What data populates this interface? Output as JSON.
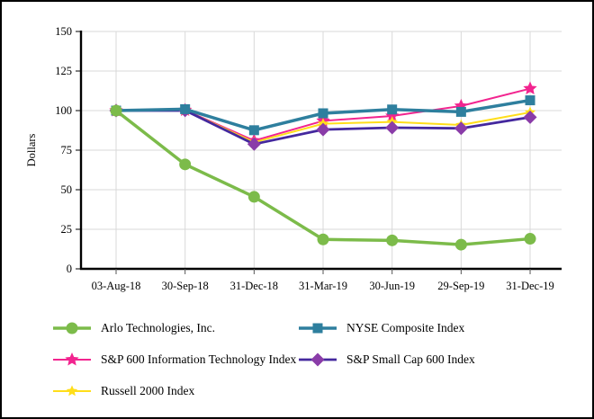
{
  "figure": {
    "background": "#ffffff",
    "border_color": "#000000",
    "grid_color": "#d9d9d9",
    "axis_color": "#000000",
    "text_color": "#000000"
  },
  "chart_data": {
    "type": "line",
    "title": "",
    "xlabel": "",
    "ylabel": "Dollars",
    "ylim": [
      0,
      150
    ],
    "yticks": [
      0,
      25,
      50,
      75,
      100,
      125,
      150
    ],
    "grid": true,
    "legend_position": "bottom",
    "categories": [
      "03-Aug-18",
      "30-Sep-18",
      "31-Dec-18",
      "31-Mar-19",
      "30-Jun-19",
      "29-Sep-19",
      "31-Dec-19"
    ],
    "series": [
      {
        "name": "Arlo Technologies, Inc.",
        "marker": "circle",
        "color": "#7cbb4a",
        "values": [
          100,
          66,
          45.5,
          18.6,
          18,
          15.3,
          19
        ]
      },
      {
        "name": "NYSE Composite Index",
        "marker": "square",
        "color": "#2e7f9e",
        "values": [
          100,
          100.9,
          87.6,
          98.3,
          100.7,
          99.2,
          106.5
        ]
      },
      {
        "name": "S&P 600 Information Technology Index",
        "marker": "star",
        "color": "#f2248f",
        "values": [
          100,
          100.3,
          81,
          93.5,
          96.6,
          102.9,
          113.9
        ]
      },
      {
        "name": "S&P Small Cap 600 Index",
        "marker": "diamond",
        "color": "#44289e",
        "marker_color": "#8a3ca8",
        "values": [
          100,
          100.1,
          78.8,
          88,
          89.2,
          88.8,
          95.8
        ]
      },
      {
        "name": "Russell 2000 Index",
        "marker": "star",
        "color": "#ffde1a",
        "values": [
          100,
          100.2,
          80,
          91.7,
          92.8,
          90.9,
          98.9
        ]
      }
    ]
  }
}
